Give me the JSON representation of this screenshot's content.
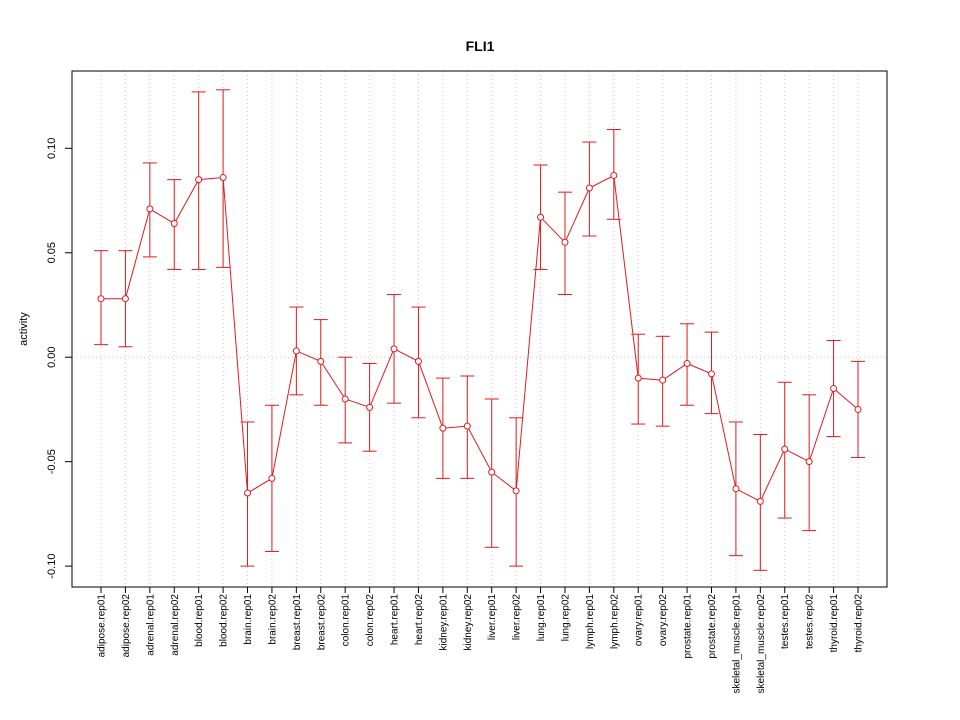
{
  "chart_data": {
    "type": "line",
    "title": "FLI1",
    "xlabel": "",
    "ylabel": "activity",
    "ylim": [
      -0.11,
      0.137
    ],
    "yticks": [
      -0.1,
      -0.05,
      0.0,
      0.05,
      0.1
    ],
    "ytick_labels": [
      "-0.10",
      "-0.05",
      "0.00",
      "0.05",
      "0.10"
    ],
    "grid": true,
    "color": "#e31a1c",
    "categories": [
      "adipose.rep01",
      "adipose.rep02",
      "adrenal.rep01",
      "adrenal.rep02",
      "blood.rep01",
      "blood.rep02",
      "brain.rep01",
      "brain.rep02",
      "breast.rep01",
      "breast.rep02",
      "colon.rep01",
      "colon.rep02",
      "heart.rep01",
      "heart.rep02",
      "kidney.rep01",
      "kidney.rep02",
      "liver.rep01",
      "liver.rep02",
      "lung.rep01",
      "lung.rep02",
      "lymph.rep01",
      "lymph.rep02",
      "ovary.rep01",
      "ovary.rep02",
      "prostate.rep01",
      "prostate.rep02",
      "skeletal_muscle.rep01",
      "skeletal_muscle.rep02",
      "testes.rep01",
      "testes.rep02",
      "thyroid.rep01",
      "thyroid.rep02"
    ],
    "values": [
      0.028,
      0.028,
      0.071,
      0.064,
      0.085,
      0.086,
      -0.065,
      -0.058,
      0.003,
      -0.002,
      -0.02,
      -0.024,
      0.004,
      -0.002,
      -0.034,
      -0.033,
      -0.055,
      -0.064,
      0.067,
      0.055,
      0.081,
      0.087,
      -0.01,
      -0.011,
      -0.003,
      -0.008,
      -0.063,
      -0.069,
      -0.044,
      -0.05,
      -0.015,
      -0.025
    ],
    "upper": [
      0.051,
      0.051,
      0.093,
      0.085,
      0.127,
      0.128,
      -0.031,
      -0.023,
      0.024,
      0.018,
      0.0,
      -0.003,
      0.03,
      0.024,
      -0.01,
      -0.009,
      -0.02,
      -0.029,
      0.092,
      0.079,
      0.103,
      0.109,
      0.011,
      0.01,
      0.016,
      0.012,
      -0.031,
      -0.037,
      -0.012,
      -0.018,
      0.008,
      -0.002
    ],
    "lower": [
      0.006,
      0.005,
      0.048,
      0.042,
      0.042,
      0.043,
      -0.1,
      -0.093,
      -0.018,
      -0.023,
      -0.041,
      -0.045,
      -0.022,
      -0.029,
      -0.058,
      -0.058,
      -0.091,
      -0.1,
      0.042,
      0.03,
      0.058,
      0.066,
      -0.032,
      -0.033,
      -0.023,
      -0.027,
      -0.095,
      -0.102,
      -0.077,
      -0.083,
      -0.038,
      -0.048
    ]
  }
}
